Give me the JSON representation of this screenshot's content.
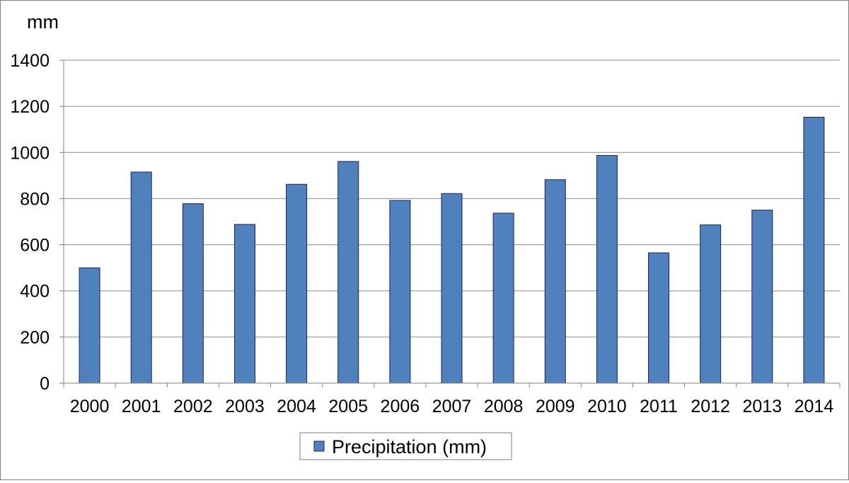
{
  "chart_data": {
    "type": "bar",
    "title": "",
    "xlabel": "",
    "ylabel": "mm",
    "ylim": [
      0,
      1400
    ],
    "yticks": [
      0,
      200,
      400,
      600,
      800,
      1000,
      1200,
      1400
    ],
    "categories": [
      "2000",
      "2001",
      "2002",
      "2003",
      "2004",
      "2005",
      "2006",
      "2007",
      "2008",
      "2009",
      "2010",
      "2011",
      "2012",
      "2013",
      "2014"
    ],
    "series": [
      {
        "name": "Precipitation (mm)",
        "color": "#4f81bd",
        "values": [
          500,
          915,
          778,
          688,
          862,
          961,
          792,
          822,
          737,
          882,
          987,
          565,
          686,
          750,
          1153
        ]
      }
    ],
    "grid": true,
    "legend": "bottom-center"
  }
}
